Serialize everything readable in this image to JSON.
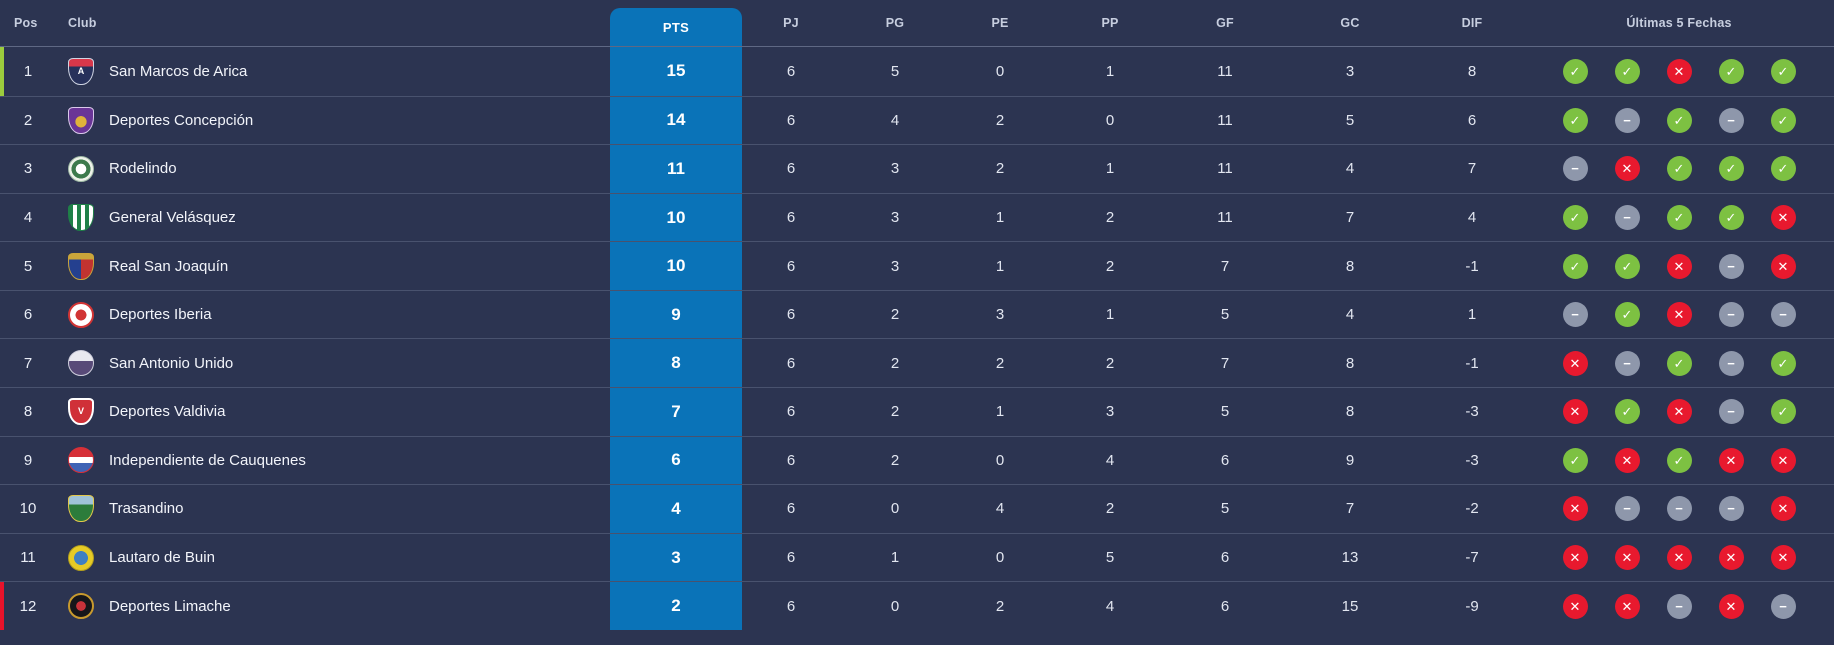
{
  "colors": {
    "background": "#2c3451",
    "pts_blue": "#0a73b8",
    "win_green": "#7dc142",
    "draw_gray": "#8e97ab",
    "loss_red": "#e8192e",
    "promotion_accent_green": "#9ccc3d",
    "relegation_accent_red": "#e8132b"
  },
  "result_glyphs": {
    "W": "✓",
    "D": "−",
    "L": "✕"
  },
  "table": {
    "columns": {
      "pos": "Pos",
      "club": "Club",
      "pts": "PTS",
      "pj": "PJ",
      "pg": "PG",
      "pe": "PE",
      "pp": "PP",
      "gf": "GF",
      "gc": "GC",
      "dif": "DIF",
      "last5": "Últimas 5 Fechas"
    },
    "rows": [
      {
        "pos": "1",
        "club": "San Marcos de Arica",
        "pts": "15",
        "pj": "6",
        "pg": "5",
        "pe": "0",
        "pp": "1",
        "gf": "11",
        "gc": "3",
        "dif": "8",
        "last5": [
          "W",
          "W",
          "L",
          "W",
          "W"
        ],
        "accent": "promotion_accent_green",
        "badge": {
          "shape": "shield",
          "bg": "linear-gradient(180deg,#d8374a 0%,#d8374a 30%,#27315b 30%,#27315b 100%)",
          "border": "1px solid #cfd4e2",
          "glyph": "A",
          "glyph_color": "#ffffff"
        }
      },
      {
        "pos": "2",
        "club": "Deportes Concepción",
        "pts": "14",
        "pj": "6",
        "pg": "4",
        "pe": "2",
        "pp": "0",
        "gf": "11",
        "gc": "5",
        "dif": "6",
        "last5": [
          "W",
          "D",
          "W",
          "D",
          "W"
        ],
        "accent": null,
        "badge": {
          "shape": "shield",
          "bg": "radial-gradient(circle at 50% 55%, #e0b23a 0 30%, #6a3596 32%)",
          "border": "1px solid #d9c9ea",
          "glyph": "",
          "glyph_color": "#ffffff"
        }
      },
      {
        "pos": "3",
        "club": "Rodelindo",
        "pts": "11",
        "pj": "6",
        "pg": "3",
        "pe": "2",
        "pp": "1",
        "gf": "11",
        "gc": "4",
        "dif": "7",
        "last5": [
          "D",
          "L",
          "W",
          "W",
          "W"
        ],
        "accent": null,
        "badge": {
          "shape": "circle",
          "bg": "radial-gradient(circle, #ffffff 0 30%, #3d7a4c 32% 55%, #eef2e9 57%)",
          "border": "1px solid #9fb9a5",
          "glyph": "",
          "glyph_color": "#3d7a4c"
        }
      },
      {
        "pos": "4",
        "club": "General Velásquez",
        "pts": "10",
        "pj": "6",
        "pg": "3",
        "pe": "1",
        "pp": "2",
        "gf": "11",
        "gc": "7",
        "dif": "4",
        "last5": [
          "W",
          "D",
          "W",
          "W",
          "L"
        ],
        "accent": null,
        "badge": {
          "shape": "shield",
          "bg": "repeating-linear-gradient(90deg, #1f8048 0 4px, #ffffff 4px 8px)",
          "border": "1px solid #1f8048",
          "glyph": "",
          "glyph_color": "#ffffff"
        }
      },
      {
        "pos": "5",
        "club": "Real San Joaquín",
        "pts": "10",
        "pj": "6",
        "pg": "3",
        "pe": "1",
        "pp": "2",
        "gf": "7",
        "gc": "8",
        "dif": "-1",
        "last5": [
          "W",
          "W",
          "L",
          "D",
          "L"
        ],
        "accent": null,
        "badge": {
          "shape": "shield",
          "bg": "linear-gradient(180deg, #caa53a 0 22%, rgba(0,0,0,0) 22%), linear-gradient(90deg, #24408f 0 50%, #c23330 50% 100%)",
          "border": "1px solid #caa53a",
          "glyph": "",
          "glyph_color": "#ffffff"
        }
      },
      {
        "pos": "6",
        "club": "Deportes Iberia",
        "pts": "9",
        "pj": "6",
        "pg": "2",
        "pe": "3",
        "pp": "1",
        "gf": "5",
        "gc": "4",
        "dif": "1",
        "last5": [
          "D",
          "W",
          "L",
          "D",
          "D"
        ],
        "accent": null,
        "badge": {
          "shape": "circle",
          "bg": "radial-gradient(circle, #d13434 0 34%, #ffffff 36%)",
          "border": "2px solid #d13434",
          "glyph": "",
          "glyph_color": "#d13434"
        }
      },
      {
        "pos": "7",
        "club": "San Antonio Unido",
        "pts": "8",
        "pj": "6",
        "pg": "2",
        "pe": "2",
        "pp": "2",
        "gf": "7",
        "gc": "8",
        "dif": "-1",
        "last5": [
          "L",
          "D",
          "W",
          "D",
          "W"
        ],
        "accent": null,
        "badge": {
          "shape": "circle",
          "bg": "linear-gradient(180deg, #e9e9f0 0 42%, #584a78 42%)",
          "border": "1px solid #cfcfdd",
          "glyph": "",
          "glyph_color": "#584a78"
        }
      },
      {
        "pos": "8",
        "club": "Deportes Valdivia",
        "pts": "7",
        "pj": "6",
        "pg": "2",
        "pe": "1",
        "pp": "3",
        "gf": "5",
        "gc": "8",
        "dif": "-3",
        "last5": [
          "L",
          "W",
          "L",
          "D",
          "W"
        ],
        "accent": null,
        "badge": {
          "shape": "shield",
          "bg": "#d03038",
          "border": "2px solid #ffffff",
          "glyph": "V",
          "glyph_color": "#ffffff"
        }
      },
      {
        "pos": "9",
        "club": "Independiente de Cauquenes",
        "pts": "6",
        "pj": "6",
        "pg": "2",
        "pe": "0",
        "pp": "4",
        "gf": "6",
        "gc": "9",
        "dif": "-3",
        "last5": [
          "W",
          "L",
          "W",
          "L",
          "L"
        ],
        "accent": null,
        "badge": {
          "shape": "circle",
          "bg": "linear-gradient(180deg, #d63038 0 38%, #ffffff 38% 62%, #3f63b5 62%)",
          "border": "1px solid #d63038",
          "glyph": "",
          "glyph_color": "#ffffff"
        }
      },
      {
        "pos": "10",
        "club": "Trasandino",
        "pts": "4",
        "pj": "6",
        "pg": "0",
        "pe": "4",
        "pp": "2",
        "gf": "5",
        "gc": "7",
        "dif": "-2",
        "last5": [
          "L",
          "D",
          "D",
          "D",
          "L"
        ],
        "accent": null,
        "badge": {
          "shape": "shield",
          "bg": "linear-gradient(180deg, #9fc3d8 0 35%, #2c7c3b 35%)",
          "border": "1px solid #e3c84a",
          "glyph": "",
          "glyph_color": "#ffffff"
        }
      },
      {
        "pos": "11",
        "club": "Lautaro de Buin",
        "pts": "3",
        "pj": "6",
        "pg": "1",
        "pe": "0",
        "pp": "5",
        "gf": "6",
        "gc": "13",
        "dif": "-7",
        "last5": [
          "L",
          "L",
          "L",
          "L",
          "L"
        ],
        "accent": null,
        "badge": {
          "shape": "circle",
          "bg": "radial-gradient(circle, #3f80c2 0 40%, #e6cb26 42%)",
          "border": "1px solid #b49f1d",
          "glyph": "",
          "glyph_color": "#ffffff"
        }
      },
      {
        "pos": "12",
        "club": "Deportes Limache",
        "pts": "2",
        "pj": "6",
        "pg": "0",
        "pe": "2",
        "pp": "4",
        "gf": "6",
        "gc": "15",
        "dif": "-9",
        "last5": [
          "L",
          "L",
          "D",
          "L",
          "D"
        ],
        "accent": "relegation_accent_red",
        "badge": {
          "shape": "circle",
          "bg": "radial-gradient(circle, #c8323a 0 30%, #16161a 32%)",
          "border": "2px solid #c89a2e",
          "glyph": "",
          "glyph_color": "#c89a2e"
        }
      }
    ]
  }
}
